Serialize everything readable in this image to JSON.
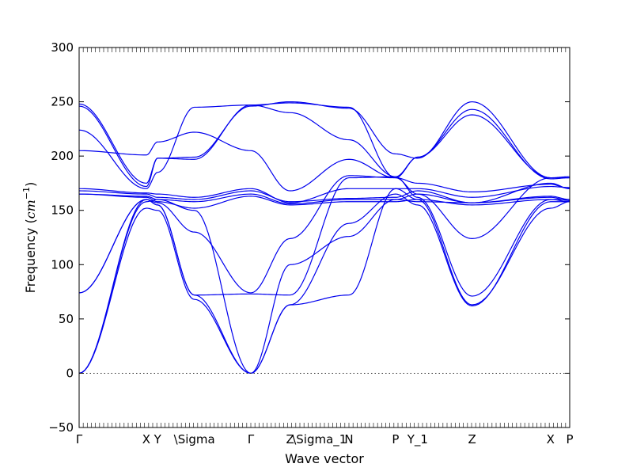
{
  "chart_data": {
    "type": "line",
    "title": "",
    "xlabel": "Wave vector",
    "ylabel": "Frequency (",
    "ylabel_unit": "cm",
    "ylabel_exp": "−1",
    "ylabel_close": ")",
    "ylim": [
      -50,
      300
    ],
    "xlim": [
      0,
      1
    ],
    "yticks": [
      -50,
      0,
      50,
      100,
      150,
      200,
      250,
      300
    ],
    "ytick_labels": [
      "−50",
      "0",
      "50",
      "100",
      "150",
      "200",
      "250",
      "300"
    ],
    "xticks": [
      {
        "pos": 0.0,
        "label": "Γ"
      },
      {
        "pos": 0.137,
        "label": "X"
      },
      {
        "pos": 0.16,
        "label": "Y"
      },
      {
        "pos": 0.235,
        "label": "\\Sigma"
      },
      {
        "pos": 0.35,
        "label": "Γ"
      },
      {
        "pos": 0.43,
        "label": "Z"
      },
      {
        "pos": 0.49,
        "label": "\\Sigma_1"
      },
      {
        "pos": 0.55,
        "label": "N"
      },
      {
        "pos": 0.645,
        "label": "P"
      },
      {
        "pos": 0.69,
        "label": "Y_1"
      },
      {
        "pos": 0.801,
        "label": "Z"
      },
      {
        "pos": 0.961,
        "label": "X"
      },
      {
        "pos": 1.0,
        "label": "P"
      }
    ],
    "zero_line": true,
    "grid": false,
    "series_color": "#0000ee",
    "series": [
      {
        "x": [
          0,
          0.137,
          0.16,
          0.235,
          0.35,
          0.43,
          0.55,
          0.645,
          0.69,
          0.801,
          0.961,
          1.0
        ],
        "y": [
          248,
          175,
          198,
          199,
          246,
          250,
          244,
          202,
          198,
          250,
          180,
          180
        ]
      },
      {
        "x": [
          0,
          0.137,
          0.16,
          0.235,
          0.35,
          0.43,
          0.55,
          0.645,
          0.69,
          0.801,
          0.961,
          1.0
        ],
        "y": [
          246,
          172,
          198,
          197,
          247,
          249,
          245,
          180,
          199,
          243,
          179,
          180
        ]
      },
      {
        "x": [
          0,
          0.137,
          0.16,
          0.235,
          0.35,
          0.43,
          0.55,
          0.645,
          0.69,
          0.801,
          0.961,
          1.0
        ],
        "y": [
          224,
          170,
          185,
          245,
          247,
          240,
          215,
          181,
          199,
          238,
          180,
          181
        ]
      },
      {
        "x": [
          0,
          0.137,
          0.16,
          0.235,
          0.35,
          0.43,
          0.55,
          0.645,
          0.69,
          0.801,
          0.961,
          1.0
        ],
        "y": [
          205,
          201,
          213,
          222,
          205,
          168,
          197,
          180,
          175,
          167,
          174,
          170
        ]
      },
      {
        "x": [
          0,
          0.137,
          0.16,
          0.235,
          0.35,
          0.43,
          0.55,
          0.645,
          0.69,
          0.801,
          0.961,
          1.0
        ],
        "y": [
          170,
          166,
          165,
          162,
          170,
          157,
          170,
          170,
          170,
          162,
          172,
          171
        ]
      },
      {
        "x": [
          0,
          0.137,
          0.16,
          0.235,
          0.35,
          0.43,
          0.55,
          0.645,
          0.69,
          0.801,
          0.961,
          1.0
        ],
        "y": [
          168,
          165,
          162,
          160,
          168,
          158,
          161,
          162,
          168,
          157,
          163,
          160
        ]
      },
      {
        "x": [
          0,
          0.137,
          0.16,
          0.235,
          0.35,
          0.43,
          0.55,
          0.645,
          0.69,
          0.801,
          0.961,
          1.0
        ],
        "y": [
          165,
          163,
          160,
          158,
          165,
          156,
          160,
          160,
          165,
          157,
          162,
          159
        ]
      },
      {
        "x": [
          0,
          0.137,
          0.16,
          0.235,
          0.35,
          0.43,
          0.55,
          0.645,
          0.69,
          0.801,
          0.961,
          1.0
        ],
        "y": [
          165,
          162,
          158,
          152,
          163,
          155,
          158,
          158,
          160,
          155,
          160,
          158
        ]
      },
      {
        "x": [
          0,
          0.137,
          0.16,
          0.235,
          0.35,
          0.43,
          0.55,
          0.645,
          0.69,
          0.801,
          0.961,
          1.0
        ],
        "y": [
          74,
          160,
          157,
          130,
          74,
          124,
          182,
          180,
          165,
          124,
          180,
          180
        ]
      },
      {
        "x": [
          0,
          0.137,
          0.16,
          0.235,
          0.35,
          0.43,
          0.55,
          0.645,
          0.69,
          0.801,
          0.961,
          1.0
        ],
        "y": [
          74,
          160,
          155,
          72,
          73,
          72,
          180,
          181,
          162,
          71,
          160,
          160
        ]
      },
      {
        "x": [
          0,
          0.137,
          0.16,
          0.235,
          0.35,
          0.43,
          0.55,
          0.645,
          0.69,
          0.801,
          0.961,
          1.0
        ],
        "y": [
          0,
          152,
          150,
          68,
          0,
          63,
          72,
          170,
          160,
          63,
          152,
          158
        ]
      },
      {
        "x": [
          0,
          0.137,
          0.16,
          0.235,
          0.35,
          0.43,
          0.55,
          0.645,
          0.69,
          0.801,
          0.961,
          1.0
        ],
        "y": [
          0,
          160,
          155,
          72,
          0,
          63,
          138,
          165,
          155,
          62,
          158,
          158
        ]
      },
      {
        "x": [
          0,
          0.137,
          0.16,
          0.235,
          0.35,
          0.43,
          0.55,
          0.645,
          0.69,
          0.801,
          0.961,
          1.0
        ],
        "y": [
          0,
          158,
          160,
          150,
          0,
          100,
          126,
          160,
          158,
          157,
          175,
          170
        ]
      }
    ]
  }
}
